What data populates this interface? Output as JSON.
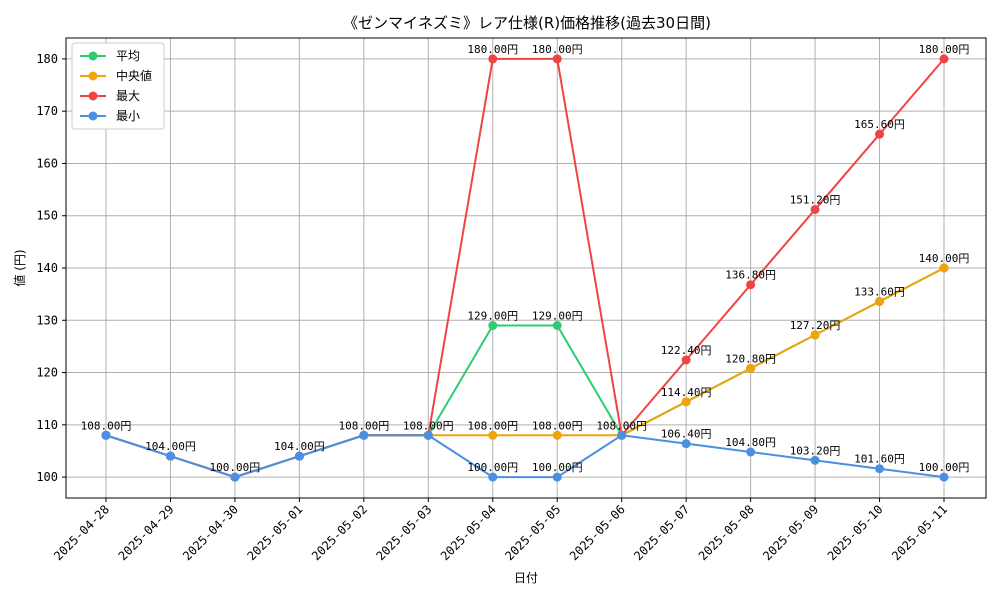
{
  "chart_data": {
    "type": "line",
    "title": "《ゼンマイネズミ》レア仕様(R)価格推移(過去30日間)",
    "xlabel": "日付",
    "ylabel": "値 (円)",
    "ylim": [
      96,
      184
    ],
    "yticks": [
      100,
      110,
      120,
      130,
      140,
      150,
      160,
      170,
      180
    ],
    "grid": true,
    "legend_position": "top-left",
    "categories": [
      "2025-04-28",
      "2025-04-29",
      "2025-04-30",
      "2025-05-01",
      "2025-05-02",
      "2025-05-03",
      "2025-05-04",
      "2025-05-05",
      "2025-05-06",
      "2025-05-07",
      "2025-05-08",
      "2025-05-09",
      "2025-05-10",
      "2025-05-11"
    ],
    "series": [
      {
        "name": "平均",
        "color": "#2ecc71",
        "values": [
          108,
          104,
          100,
          104,
          108,
          108,
          129,
          129,
          108,
          114.4,
          120.8,
          127.2,
          133.6,
          140
        ]
      },
      {
        "name": "中央値",
        "color": "#f0a30a",
        "values": [
          108,
          104,
          100,
          104,
          108,
          108,
          108,
          108,
          108,
          114.4,
          120.8,
          127.2,
          133.6,
          140
        ]
      },
      {
        "name": "最大",
        "color": "#ef4444",
        "values": [
          108,
          104,
          100,
          104,
          108,
          108,
          180,
          180,
          108,
          122.4,
          136.8,
          151.2,
          165.6,
          180
        ]
      },
      {
        "name": "最小",
        "color": "#4a90e2",
        "values": [
          108,
          104,
          100,
          104,
          108,
          108,
          100,
          100,
          108,
          106.4,
          104.8,
          103.2,
          101.6,
          100
        ]
      }
    ],
    "data_labels": [
      {
        "text": "108.00円",
        "series": "最小",
        "index": 0
      },
      {
        "text": "104.00円",
        "series": "最小",
        "index": 1
      },
      {
        "text": "100.00円",
        "series": "最小",
        "index": 2
      },
      {
        "text": "104.00円",
        "series": "最小",
        "index": 3
      },
      {
        "text": "108.00円",
        "series": "最小",
        "index": 4
      },
      {
        "text": "108.00円",
        "series": "最小",
        "index": 5
      },
      {
        "text": "180.00円",
        "series": "最大",
        "index": 6
      },
      {
        "text": "180.00円",
        "series": "最大",
        "index": 7
      },
      {
        "text": "129.00円",
        "series": "平均",
        "index": 6
      },
      {
        "text": "129.00円",
        "series": "平均",
        "index": 7
      },
      {
        "text": "108.00円",
        "series": "中央値",
        "index": 6
      },
      {
        "text": "108.00円",
        "series": "中央値",
        "index": 7
      },
      {
        "text": "100.00円",
        "series": "最小",
        "index": 6
      },
      {
        "text": "100.00円",
        "series": "最小",
        "index": 7
      },
      {
        "text": "108.00円",
        "series": "最小",
        "index": 8
      },
      {
        "text": "122.40円",
        "series": "最大",
        "index": 9
      },
      {
        "text": "136.80円",
        "series": "最大",
        "index": 10
      },
      {
        "text": "151.20円",
        "series": "最大",
        "index": 11
      },
      {
        "text": "165.60円",
        "series": "最大",
        "index": 12
      },
      {
        "text": "180.00円",
        "series": "最大",
        "index": 13
      },
      {
        "text": "114.40円",
        "series": "中央値",
        "index": 9
      },
      {
        "text": "120.80円",
        "series": "中央値",
        "index": 10
      },
      {
        "text": "127.20円",
        "series": "中央値",
        "index": 11
      },
      {
        "text": "133.60円",
        "series": "中央値",
        "index": 12
      },
      {
        "text": "140.00円",
        "series": "中央値",
        "index": 13
      },
      {
        "text": "106.40円",
        "series": "最小",
        "index": 9
      },
      {
        "text": "104.80円",
        "series": "最小",
        "index": 10
      },
      {
        "text": "103.20円",
        "series": "最小",
        "index": 11
      },
      {
        "text": "101.60円",
        "series": "最小",
        "index": 12
      },
      {
        "text": "100.00円",
        "series": "最小",
        "index": 13
      }
    ]
  }
}
